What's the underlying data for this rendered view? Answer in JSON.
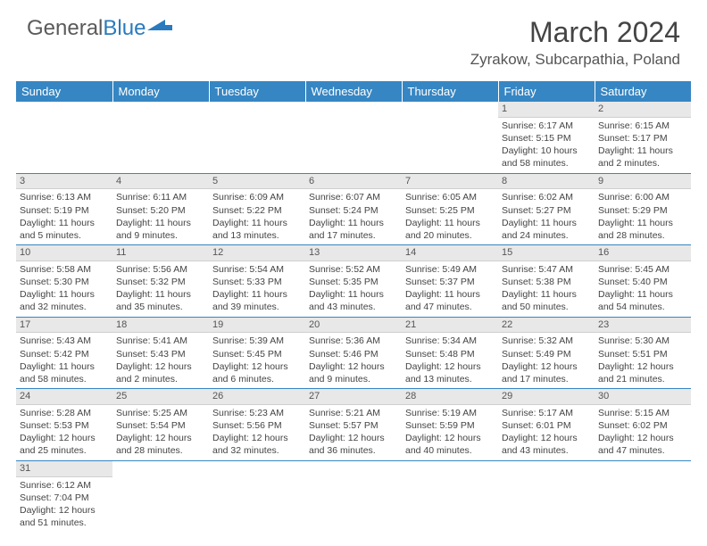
{
  "brand": {
    "part1": "General",
    "part2": "Blue"
  },
  "title": "March 2024",
  "location": "Zyrakow, Subcarpathia, Poland",
  "colors": {
    "header_bg": "#3686c3",
    "header_fg": "#ffffff",
    "daynum_bg": "#e8e8e8",
    "row_border": "#3686c3"
  },
  "day_headers": [
    "Sunday",
    "Monday",
    "Tuesday",
    "Wednesday",
    "Thursday",
    "Friday",
    "Saturday"
  ],
  "weeks": [
    [
      {
        "n": "",
        "sr": "",
        "ss": "",
        "dl": ""
      },
      {
        "n": "",
        "sr": "",
        "ss": "",
        "dl": ""
      },
      {
        "n": "",
        "sr": "",
        "ss": "",
        "dl": ""
      },
      {
        "n": "",
        "sr": "",
        "ss": "",
        "dl": ""
      },
      {
        "n": "",
        "sr": "",
        "ss": "",
        "dl": ""
      },
      {
        "n": "1",
        "sr": "Sunrise: 6:17 AM",
        "ss": "Sunset: 5:15 PM",
        "dl": "Daylight: 10 hours and 58 minutes."
      },
      {
        "n": "2",
        "sr": "Sunrise: 6:15 AM",
        "ss": "Sunset: 5:17 PM",
        "dl": "Daylight: 11 hours and 2 minutes."
      }
    ],
    [
      {
        "n": "3",
        "sr": "Sunrise: 6:13 AM",
        "ss": "Sunset: 5:19 PM",
        "dl": "Daylight: 11 hours and 5 minutes."
      },
      {
        "n": "4",
        "sr": "Sunrise: 6:11 AM",
        "ss": "Sunset: 5:20 PM",
        "dl": "Daylight: 11 hours and 9 minutes."
      },
      {
        "n": "5",
        "sr": "Sunrise: 6:09 AM",
        "ss": "Sunset: 5:22 PM",
        "dl": "Daylight: 11 hours and 13 minutes."
      },
      {
        "n": "6",
        "sr": "Sunrise: 6:07 AM",
        "ss": "Sunset: 5:24 PM",
        "dl": "Daylight: 11 hours and 17 minutes."
      },
      {
        "n": "7",
        "sr": "Sunrise: 6:05 AM",
        "ss": "Sunset: 5:25 PM",
        "dl": "Daylight: 11 hours and 20 minutes."
      },
      {
        "n": "8",
        "sr": "Sunrise: 6:02 AM",
        "ss": "Sunset: 5:27 PM",
        "dl": "Daylight: 11 hours and 24 minutes."
      },
      {
        "n": "9",
        "sr": "Sunrise: 6:00 AM",
        "ss": "Sunset: 5:29 PM",
        "dl": "Daylight: 11 hours and 28 minutes."
      }
    ],
    [
      {
        "n": "10",
        "sr": "Sunrise: 5:58 AM",
        "ss": "Sunset: 5:30 PM",
        "dl": "Daylight: 11 hours and 32 minutes."
      },
      {
        "n": "11",
        "sr": "Sunrise: 5:56 AM",
        "ss": "Sunset: 5:32 PM",
        "dl": "Daylight: 11 hours and 35 minutes."
      },
      {
        "n": "12",
        "sr": "Sunrise: 5:54 AM",
        "ss": "Sunset: 5:33 PM",
        "dl": "Daylight: 11 hours and 39 minutes."
      },
      {
        "n": "13",
        "sr": "Sunrise: 5:52 AM",
        "ss": "Sunset: 5:35 PM",
        "dl": "Daylight: 11 hours and 43 minutes."
      },
      {
        "n": "14",
        "sr": "Sunrise: 5:49 AM",
        "ss": "Sunset: 5:37 PM",
        "dl": "Daylight: 11 hours and 47 minutes."
      },
      {
        "n": "15",
        "sr": "Sunrise: 5:47 AM",
        "ss": "Sunset: 5:38 PM",
        "dl": "Daylight: 11 hours and 50 minutes."
      },
      {
        "n": "16",
        "sr": "Sunrise: 5:45 AM",
        "ss": "Sunset: 5:40 PM",
        "dl": "Daylight: 11 hours and 54 minutes."
      }
    ],
    [
      {
        "n": "17",
        "sr": "Sunrise: 5:43 AM",
        "ss": "Sunset: 5:42 PM",
        "dl": "Daylight: 11 hours and 58 minutes."
      },
      {
        "n": "18",
        "sr": "Sunrise: 5:41 AM",
        "ss": "Sunset: 5:43 PM",
        "dl": "Daylight: 12 hours and 2 minutes."
      },
      {
        "n": "19",
        "sr": "Sunrise: 5:39 AM",
        "ss": "Sunset: 5:45 PM",
        "dl": "Daylight: 12 hours and 6 minutes."
      },
      {
        "n": "20",
        "sr": "Sunrise: 5:36 AM",
        "ss": "Sunset: 5:46 PM",
        "dl": "Daylight: 12 hours and 9 minutes."
      },
      {
        "n": "21",
        "sr": "Sunrise: 5:34 AM",
        "ss": "Sunset: 5:48 PM",
        "dl": "Daylight: 12 hours and 13 minutes."
      },
      {
        "n": "22",
        "sr": "Sunrise: 5:32 AM",
        "ss": "Sunset: 5:49 PM",
        "dl": "Daylight: 12 hours and 17 minutes."
      },
      {
        "n": "23",
        "sr": "Sunrise: 5:30 AM",
        "ss": "Sunset: 5:51 PM",
        "dl": "Daylight: 12 hours and 21 minutes."
      }
    ],
    [
      {
        "n": "24",
        "sr": "Sunrise: 5:28 AM",
        "ss": "Sunset: 5:53 PM",
        "dl": "Daylight: 12 hours and 25 minutes."
      },
      {
        "n": "25",
        "sr": "Sunrise: 5:25 AM",
        "ss": "Sunset: 5:54 PM",
        "dl": "Daylight: 12 hours and 28 minutes."
      },
      {
        "n": "26",
        "sr": "Sunrise: 5:23 AM",
        "ss": "Sunset: 5:56 PM",
        "dl": "Daylight: 12 hours and 32 minutes."
      },
      {
        "n": "27",
        "sr": "Sunrise: 5:21 AM",
        "ss": "Sunset: 5:57 PM",
        "dl": "Daylight: 12 hours and 36 minutes."
      },
      {
        "n": "28",
        "sr": "Sunrise: 5:19 AM",
        "ss": "Sunset: 5:59 PM",
        "dl": "Daylight: 12 hours and 40 minutes."
      },
      {
        "n": "29",
        "sr": "Sunrise: 5:17 AM",
        "ss": "Sunset: 6:01 PM",
        "dl": "Daylight: 12 hours and 43 minutes."
      },
      {
        "n": "30",
        "sr": "Sunrise: 5:15 AM",
        "ss": "Sunset: 6:02 PM",
        "dl": "Daylight: 12 hours and 47 minutes."
      }
    ],
    [
      {
        "n": "31",
        "sr": "Sunrise: 6:12 AM",
        "ss": "Sunset: 7:04 PM",
        "dl": "Daylight: 12 hours and 51 minutes."
      },
      {
        "n": "",
        "sr": "",
        "ss": "",
        "dl": ""
      },
      {
        "n": "",
        "sr": "",
        "ss": "",
        "dl": ""
      },
      {
        "n": "",
        "sr": "",
        "ss": "",
        "dl": ""
      },
      {
        "n": "",
        "sr": "",
        "ss": "",
        "dl": ""
      },
      {
        "n": "",
        "sr": "",
        "ss": "",
        "dl": ""
      },
      {
        "n": "",
        "sr": "",
        "ss": "",
        "dl": ""
      }
    ]
  ]
}
